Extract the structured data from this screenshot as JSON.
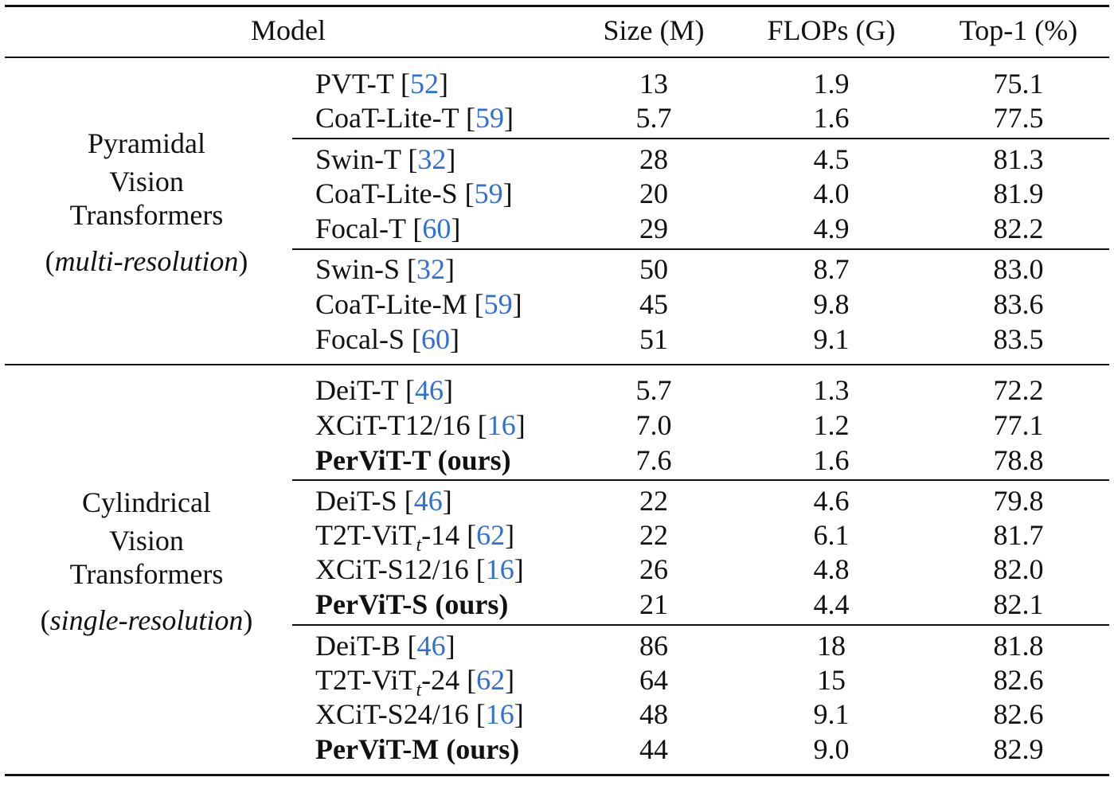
{
  "header": {
    "model": "Model",
    "size": "Size (M)",
    "flops": "FLOPs (G)",
    "top1": "Top-1 (%)"
  },
  "groups": [
    {
      "lines": [
        "Pyramidal",
        "Vision",
        "Transformers"
      ],
      "sub_open": "(",
      "sub_italic": "multi-resolution",
      "sub_close": ")",
      "rows": [
        {
          "name": "PVT-T",
          "cite": "52",
          "size": "13",
          "flops": "1.9",
          "top1": "75.1"
        },
        {
          "name": "CoaT-Lite-T",
          "cite": "59",
          "size": "5.7",
          "flops": "1.6",
          "top1": "77.5"
        },
        {
          "name": "Swin-T",
          "cite": "32",
          "size": "28",
          "flops": "4.5",
          "top1": "81.3"
        },
        {
          "name": "CoaT-Lite-S",
          "cite": "59",
          "size": "20",
          "flops": "4.0",
          "top1": "81.9"
        },
        {
          "name": "Focal-T",
          "cite": "60",
          "size": "29",
          "flops": "4.9",
          "top1": "82.2"
        },
        {
          "name": "Swin-S",
          "cite": "32",
          "size": "50",
          "flops": "8.7",
          "top1": "83.0"
        },
        {
          "name": "CoaT-Lite-M",
          "cite": "59",
          "size": "45",
          "flops": "9.8",
          "top1": "83.6"
        },
        {
          "name": "Focal-S",
          "cite": "60",
          "size": "51",
          "flops": "9.1",
          "top1": "83.5"
        }
      ]
    },
    {
      "lines": [
        "Cylindrical",
        "Vision",
        "Transformers"
      ],
      "sub_open": "(",
      "sub_italic": "single-resolution",
      "sub_close": ")",
      "rows": [
        {
          "name": "DeiT-T",
          "cite": "46",
          "size": "5.7",
          "flops": "1.3",
          "top1": "72.2"
        },
        {
          "name": "XCiT-T12/16",
          "cite": "16",
          "size": "7.0",
          "flops": "1.2",
          "top1": "77.1"
        },
        {
          "name": "PerViT-T (ours)",
          "size": "7.6",
          "flops": "1.6",
          "top1": "78.8"
        },
        {
          "name": "DeiT-S",
          "cite": "46",
          "size": "22",
          "flops": "4.6",
          "top1": "79.8"
        },
        {
          "name_pre": "T2T-ViT",
          "name_sub": "t",
          "name_post": "-14",
          "cite": "62",
          "size": "22",
          "flops": "6.1",
          "top1": "81.7"
        },
        {
          "name": "XCiT-S12/16",
          "cite": "16",
          "size": "26",
          "flops": "4.8",
          "top1": "82.0"
        },
        {
          "name": "PerViT-S (ours)",
          "size": "21",
          "flops": "4.4",
          "top1": "82.1"
        },
        {
          "name": "DeiT-B",
          "cite": "46",
          "size": "86",
          "flops": "18",
          "top1": "81.8"
        },
        {
          "name_pre": "T2T-ViT",
          "name_sub": "t",
          "name_post": "-24",
          "cite": "62",
          "size": "64",
          "flops": "15",
          "top1": "82.6"
        },
        {
          "name": "XCiT-S24/16",
          "cite": "16",
          "size": "48",
          "flops": "9.1",
          "top1": "82.6"
        },
        {
          "name": "PerViT-M (ours)",
          "size": "44",
          "flops": "9.0",
          "top1": "82.9"
        }
      ]
    }
  ]
}
